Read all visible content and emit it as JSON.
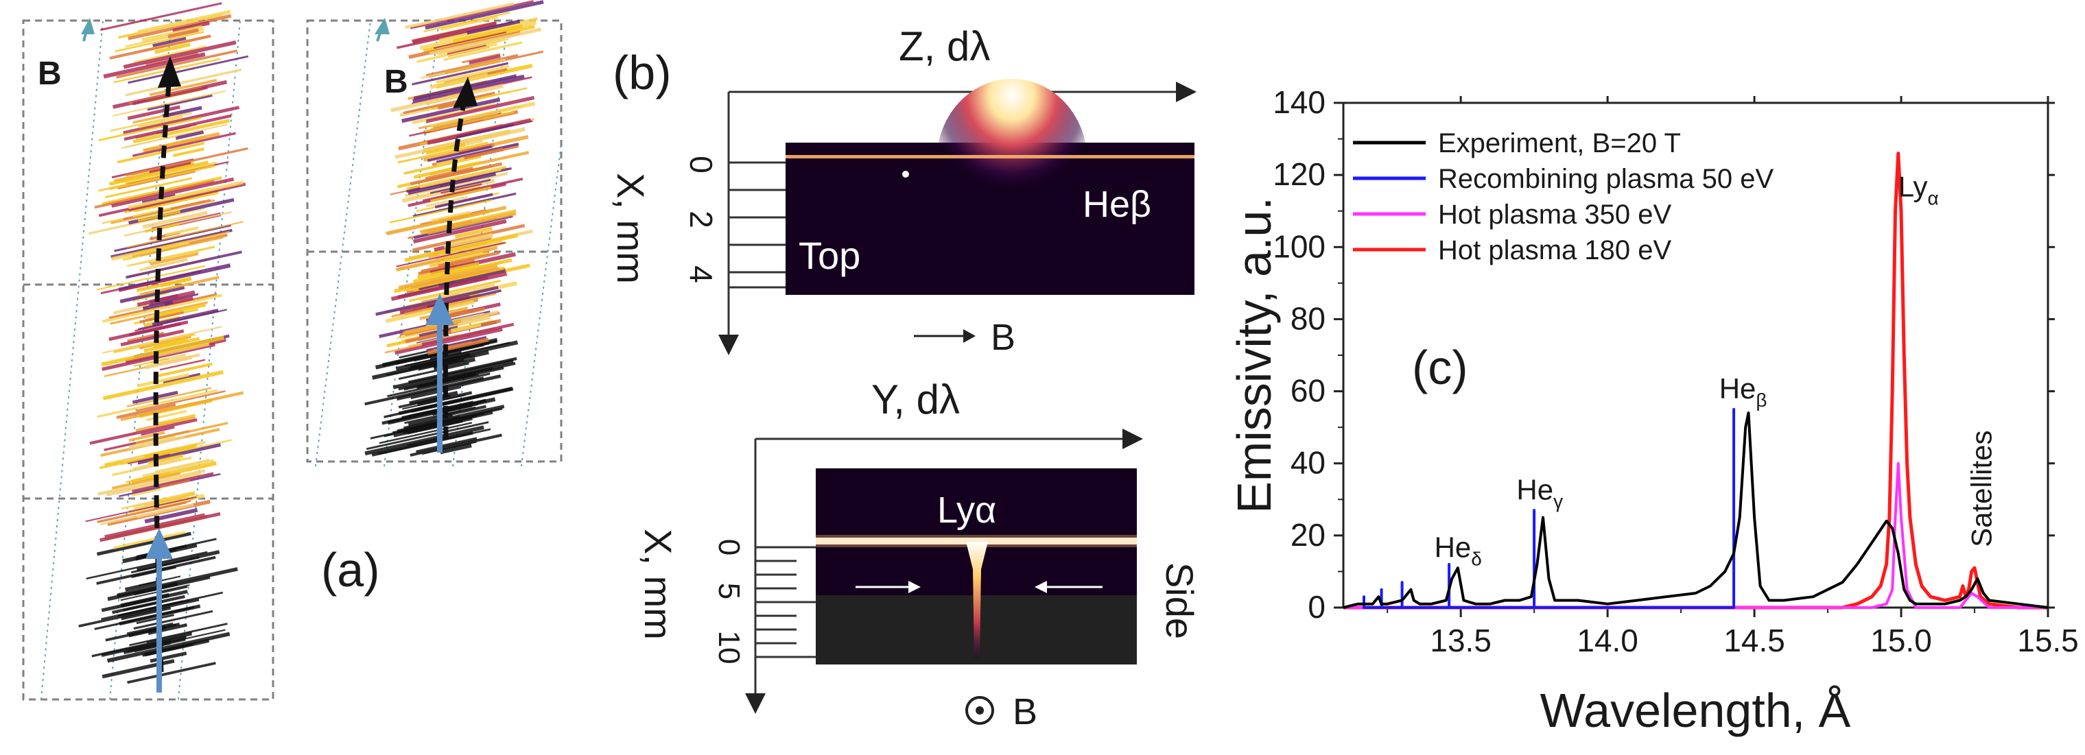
{
  "panel_a": {
    "label": "(a)",
    "left_field_label": "B",
    "right_field_label": "B"
  },
  "panel_b": {
    "label": "(b)",
    "top": {
      "axis_title": "Z, dλ",
      "ylabel": "X, mm",
      "ticks": [
        "0",
        "2",
        "4"
      ],
      "region_label": "Top",
      "line_label": "Heβ",
      "field_label": "B"
    },
    "side": {
      "axis_title": "Y, dλ",
      "ylabel": "X, mm",
      "ticks": [
        "0",
        "5",
        "10"
      ],
      "region_label": "Side",
      "line_label": "Lyα",
      "field_label": "B"
    }
  },
  "panel_c": {
    "label": "(c)"
  },
  "colors": {
    "experiment": "#000000",
    "recombining": "#1a1aff",
    "hot350": "#ff33ff",
    "hot180": "#ff1a1a",
    "image_bg": "#14001e",
    "flame_a": "#f5c518"
  },
  "chart_data": {
    "type": "line",
    "xlabel": "Wavelength, Å",
    "ylabel": "Emissivity, a.u.",
    "xlim": [
      13.1,
      15.5
    ],
    "ylim": [
      0,
      140
    ],
    "xticks": [
      "13.5",
      "14.0",
      "14.5",
      "15.0",
      "15.5"
    ],
    "yticks": [
      "0",
      "20",
      "40",
      "60",
      "80",
      "100",
      "120",
      "140"
    ],
    "legend_position": "top-left",
    "series": [
      {
        "name": "Experiment, B=20 T",
        "x": [
          13.1,
          13.15,
          13.2,
          13.22,
          13.23,
          13.25,
          13.3,
          13.33,
          13.34,
          13.36,
          13.4,
          13.45,
          13.47,
          13.49,
          13.51,
          13.55,
          13.6,
          13.65,
          13.7,
          13.74,
          13.76,
          13.78,
          13.8,
          13.82,
          13.9,
          14.0,
          14.1,
          14.2,
          14.3,
          14.35,
          14.4,
          14.43,
          14.45,
          14.47,
          14.48,
          14.5,
          14.52,
          14.55,
          14.6,
          14.7,
          14.8,
          14.85,
          14.9,
          14.95,
          14.97,
          14.99,
          15.01,
          15.03,
          15.05,
          15.1,
          15.15,
          15.2,
          15.22,
          15.24,
          15.26,
          15.28,
          15.3,
          15.4,
          15.5
        ],
        "values": [
          0,
          1,
          1,
          3,
          1,
          1,
          2,
          5,
          2,
          1,
          1,
          2,
          8,
          11,
          2,
          1,
          1,
          2,
          2,
          3,
          12,
          25,
          8,
          2,
          2,
          1,
          2,
          3,
          4,
          6,
          10,
          15,
          25,
          50,
          54,
          25,
          6,
          2,
          2,
          3,
          7,
          12,
          18,
          24,
          22,
          15,
          5,
          2,
          1,
          1,
          1,
          2,
          3,
          5,
          8,
          4,
          2,
          1,
          0
        ]
      },
      {
        "name": "Recombining plasma 50 eV",
        "x": [
          13.17,
          13.17,
          13.17,
          13.23,
          13.23,
          13.23,
          13.3,
          13.3,
          13.3,
          13.46,
          13.46,
          13.46,
          13.75,
          13.75,
          13.75,
          14.43,
          14.43,
          14.43
        ],
        "values": [
          0,
          3,
          0,
          0,
          5,
          0,
          0,
          7,
          0,
          0,
          12,
          0,
          0,
          27,
          0,
          0,
          55,
          0
        ]
      },
      {
        "name": "Hot plasma 350 eV",
        "x": [
          13.1,
          14.9,
          14.95,
          14.97,
          14.98,
          14.99,
          15.0,
          15.02,
          15.05,
          15.2,
          15.22,
          15.24,
          15.26,
          15.3,
          15.5
        ],
        "values": [
          0,
          0,
          1,
          5,
          25,
          40,
          25,
          5,
          0,
          0,
          2,
          4,
          3,
          0,
          0
        ]
      },
      {
        "name": "Hot plasma 180 eV",
        "x": [
          13.1,
          14.8,
          14.85,
          14.9,
          14.93,
          14.95,
          14.96,
          14.97,
          14.98,
          14.99,
          15.0,
          15.01,
          15.02,
          15.03,
          15.05,
          15.07,
          15.1,
          15.15,
          15.2,
          15.21,
          15.22,
          15.23,
          15.24,
          15.25,
          15.26,
          15.27,
          15.3,
          15.4,
          15.5
        ],
        "values": [
          0,
          0,
          1,
          3,
          6,
          12,
          25,
          60,
          110,
          126,
          110,
          70,
          40,
          25,
          12,
          6,
          3,
          2,
          3,
          6,
          3,
          5,
          10,
          11,
          7,
          3,
          1,
          0,
          0
        ]
      }
    ],
    "annotations": [
      {
        "base": "He",
        "sub": "δ",
        "x": 13.48,
        "y": 14
      },
      {
        "base": "He",
        "sub": "γ",
        "x": 13.76,
        "y": 30
      },
      {
        "base": "He",
        "sub": "β",
        "x": 14.45,
        "y": 58
      },
      {
        "base": "Ly",
        "sub": "α",
        "x": 15.06,
        "y": 114
      },
      {
        "base": "Satellites",
        "sub": "",
        "x": 15.27,
        "y": 16
      }
    ]
  }
}
